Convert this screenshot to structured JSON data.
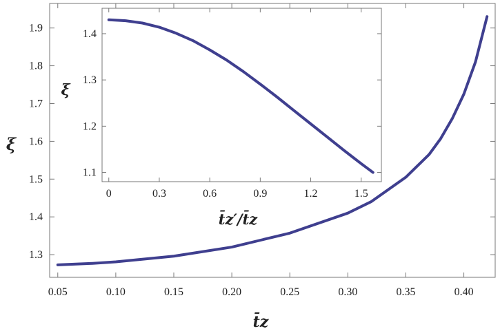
{
  "chart_data": [
    {
      "type": "line",
      "name": "main",
      "xlabel": "t̄z",
      "ylabel": "ξ",
      "xlim": [
        0.043,
        0.427
      ],
      "ylim": [
        1.24,
        1.965
      ],
      "xticks": [
        0.05,
        0.1,
        0.15,
        0.2,
        0.25,
        0.3,
        0.35,
        0.4
      ],
      "xtick_labels": [
        "0.05",
        "0.10",
        "0.15",
        "0.20",
        "0.25",
        "0.30",
        "0.35",
        "0.40"
      ],
      "yticks": [
        1.3,
        1.4,
        1.5,
        1.6,
        1.7,
        1.8,
        1.9
      ],
      "ytick_labels": [
        "1.3",
        "1.4",
        "1.5",
        "1.6",
        "1.7",
        "1.8",
        "1.9"
      ],
      "color": "#3f3f8f",
      "series": [
        {
          "x": [
            0.05,
            0.08,
            0.1,
            0.15,
            0.2,
            0.25,
            0.3,
            0.32,
            0.35,
            0.37,
            0.38,
            0.39,
            0.4,
            0.41,
            0.42
          ],
          "y": [
            1.273,
            1.277,
            1.281,
            1.296,
            1.32,
            1.357,
            1.41,
            1.44,
            1.505,
            1.565,
            1.607,
            1.66,
            1.725,
            1.81,
            1.93
          ]
        }
      ]
    },
    {
      "type": "line",
      "name": "inset",
      "xlabel": "t̄z′/t̄z",
      "ylabel": "ξ",
      "xlim": [
        -0.04,
        1.62
      ],
      "ylim": [
        1.08,
        1.455
      ],
      "xticks": [
        0,
        0.3,
        0.6,
        0.9,
        1.2,
        1.5
      ],
      "xtick_labels": [
        "0",
        "0.3",
        "0.6",
        "0.9",
        "1.2",
        "1.5"
      ],
      "yticks": [
        1.1,
        1.2,
        1.3,
        1.4
      ],
      "ytick_labels": [
        "1.1",
        "1.2",
        "1.3",
        "1.4"
      ],
      "color": "#3f3f8f",
      "series": [
        {
          "x": [
            0,
            0.1,
            0.2,
            0.3,
            0.4,
            0.5,
            0.6,
            0.7,
            0.8,
            0.9,
            1.0,
            1.1,
            1.2,
            1.3,
            1.4,
            1.5,
            1.57
          ],
          "y": [
            1.43,
            1.428,
            1.423,
            1.414,
            1.401,
            1.385,
            1.365,
            1.343,
            1.318,
            1.291,
            1.263,
            1.234,
            1.205,
            1.176,
            1.147,
            1.119,
            1.1
          ]
        }
      ]
    }
  ]
}
